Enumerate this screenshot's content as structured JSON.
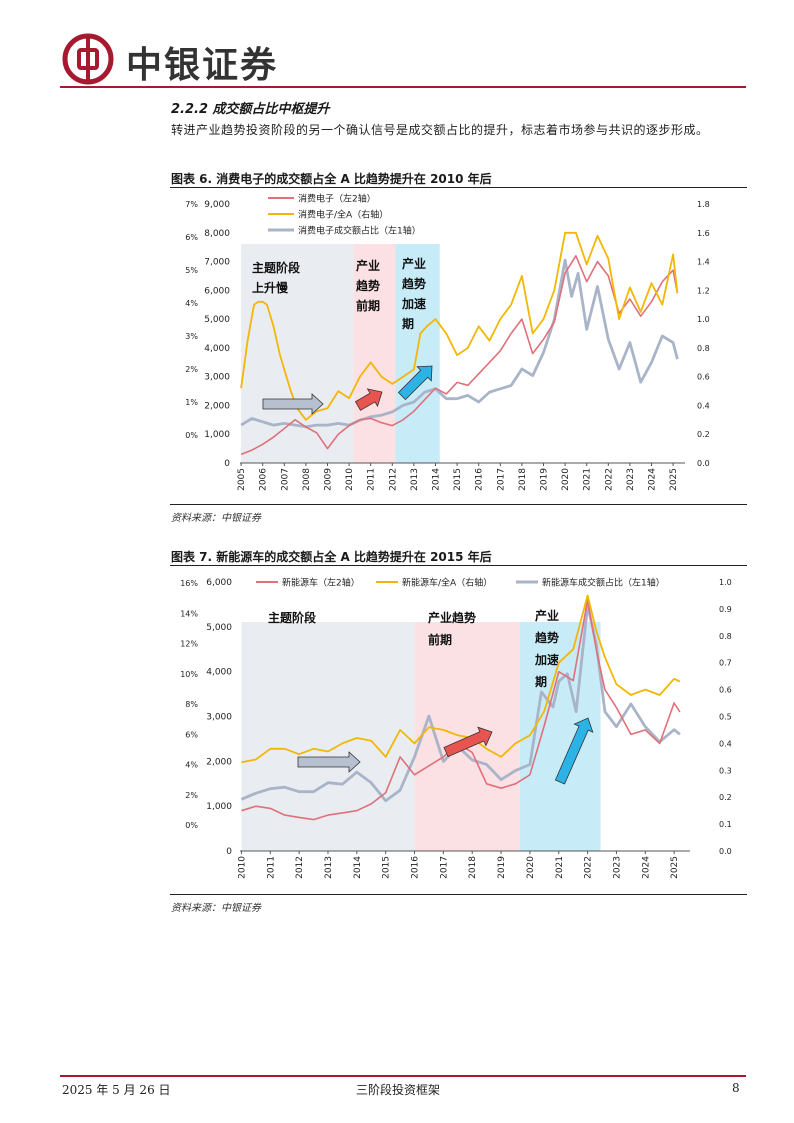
{
  "header": {
    "brand": "中银证券"
  },
  "section": {
    "title": "2.2.2 成交额占比中枢提升",
    "intro": "转进产业趋势投资阶段的另一个确认信号是成交额占比的提升，标志着市场参与共识的逐步形成。"
  },
  "figures": [
    {
      "title": "图表 6. 消费电子的成交额占全 A 比趋势提升在 2010 年后",
      "source": "资料来源：中银证券",
      "phases": [
        "主题阶段上升慢",
        "产业趋势前期",
        "产业趋势加速期"
      ]
    },
    {
      "title": "图表 7. 新能源车的成交额占全 A 比趋势提升在 2015 年后",
      "source": "资料来源：中银证券",
      "phases": [
        "主题阶段",
        "产业趋势前期",
        "产业趋势加速期"
      ]
    }
  ],
  "chart_data": [
    {
      "type": "line",
      "legend": [
        "消费电子（左2轴）",
        "消费电子/全A（右轴）",
        "消费电子成交额占比（左1轴）"
      ],
      "left1_ticks": [
        "7%",
        "6%",
        "5%",
        "4%",
        "3%",
        "2%",
        "1%",
        "0%"
      ],
      "left2_ticks": [
        "9,000",
        "8,000",
        "7,000",
        "6,000",
        "5,000",
        "4,000",
        "3,000",
        "2,000",
        "1,000",
        "0"
      ],
      "right_ticks": [
        "1.8",
        "1.6",
        "1.4",
        "1.2",
        "1.0",
        "0.8",
        "0.6",
        "0.4",
        "0.2",
        "0.0"
      ],
      "x_ticks": [
        "2005",
        "2006",
        "2007",
        "2008",
        "2009",
        "2010",
        "2011",
        "2012",
        "2013",
        "2014",
        "2015",
        "2016",
        "2017",
        "2018",
        "2019",
        "2020",
        "2021",
        "2022",
        "2023",
        "2024",
        "2025"
      ],
      "band_labels": [
        [
          "主题阶段",
          "上升慢"
        ],
        [
          "产业",
          "趋势",
          "前期"
        ],
        [
          "产业",
          "趋势",
          "加速",
          "期"
        ]
      ],
      "colors": {
        "series_a": "#e0707a",
        "series_b": "#f2b705",
        "series_c": "#a9b4c8",
        "band1": "#e9edf1",
        "band2": "#fbe1e4",
        "band3": "#c7ecf7",
        "arrow1": "#b7c0cf",
        "arrow2": "#e85550",
        "arrow3": "#2bb3e6"
      },
      "series": [
        {
          "name": "消费电子（左2轴）",
          "axis": "left2",
          "x": [
            2005.0,
            2005.5,
            2006.0,
            2006.5,
            2007.0,
            2007.5,
            2008.0,
            2008.5,
            2009.0,
            2009.5,
            2010.0,
            2010.5,
            2011.0,
            2011.5,
            2012.0,
            2012.5,
            2013.0,
            2013.5,
            2014.0,
            2014.5,
            2015.0,
            2015.5,
            2016.0,
            2016.5,
            2017.0,
            2017.5,
            2018.0,
            2018.5,
            2019.0,
            2019.5,
            2020.0,
            2020.5,
            2021.0,
            2021.5,
            2022.0,
            2022.5,
            2023.0,
            2023.5,
            2024.0,
            2024.5,
            2025.0,
            2025.2
          ],
          "values": [
            300,
            450,
            650,
            900,
            1200,
            1500,
            1250,
            1050,
            500,
            1000,
            1300,
            1500,
            1550,
            1400,
            1300,
            1500,
            1800,
            2200,
            2600,
            2400,
            2800,
            2700,
            3100,
            3500,
            3900,
            4500,
            5000,
            3800,
            4300,
            4900,
            6600,
            7200,
            6300,
            7000,
            6500,
            5200,
            5700,
            5100,
            5600,
            6300,
            6700,
            5900
          ]
        },
        {
          "name": "消费电子/全A（右轴）",
          "axis": "right",
          "x": [
            2005.0,
            2005.3,
            2005.6,
            2005.8,
            2006.0,
            2006.2,
            2006.5,
            2006.8,
            2007.0,
            2007.3,
            2007.6,
            2008.0,
            2008.5,
            2009.0,
            2009.5,
            2010.0,
            2010.5,
            2011.0,
            2011.5,
            2012.0,
            2012.5,
            2013.0,
            2013.3,
            2013.6,
            2014.0,
            2014.5,
            2015.0,
            2015.5,
            2016.0,
            2016.5,
            2017.0,
            2017.5,
            2018.0,
            2018.5,
            2019.0,
            2019.5,
            2020.0,
            2020.5,
            2021.0,
            2021.5,
            2022.0,
            2022.5,
            2023.0,
            2023.5,
            2024.0,
            2024.5,
            2025.0,
            2025.2
          ],
          "values": [
            0.52,
            0.85,
            1.1,
            1.12,
            1.12,
            1.1,
            0.95,
            0.75,
            0.65,
            0.5,
            0.38,
            0.3,
            0.36,
            0.38,
            0.5,
            0.45,
            0.6,
            0.7,
            0.6,
            0.55,
            0.6,
            0.65,
            0.9,
            0.95,
            1.0,
            0.9,
            0.75,
            0.8,
            0.95,
            0.85,
            1.0,
            1.1,
            1.3,
            0.9,
            1.0,
            1.2,
            1.6,
            1.6,
            1.38,
            1.58,
            1.42,
            1.0,
            1.22,
            1.05,
            1.25,
            1.1,
            1.45,
            1.18
          ]
        },
        {
          "name": "消费电子成交额占比（左1轴）",
          "axis": "left1",
          "x": [
            2005.0,
            2005.5,
            2006.0,
            2006.5,
            2007.0,
            2007.5,
            2008.0,
            2008.5,
            2009.0,
            2009.5,
            2010.0,
            2010.5,
            2011.0,
            2011.5,
            2012.0,
            2012.5,
            2013.0,
            2013.5,
            2014.0,
            2014.5,
            2015.0,
            2015.5,
            2016.0,
            2016.5,
            2017.0,
            2017.5,
            2018.0,
            2018.5,
            2019.0,
            2019.5,
            2020.0,
            2020.3,
            2020.6,
            2021.0,
            2021.5,
            2022.0,
            2022.5,
            2023.0,
            2023.5,
            2024.0,
            2024.5,
            2025.0,
            2025.2
          ],
          "values": [
            0.3,
            0.5,
            0.4,
            0.3,
            0.35,
            0.3,
            0.25,
            0.3,
            0.3,
            0.35,
            0.3,
            0.45,
            0.55,
            0.6,
            0.7,
            0.9,
            1.0,
            1.3,
            1.4,
            1.1,
            1.1,
            1.2,
            1.0,
            1.3,
            1.4,
            1.5,
            2.0,
            1.8,
            2.5,
            3.5,
            5.3,
            4.2,
            4.9,
            3.2,
            4.5,
            2.9,
            2.0,
            2.8,
            1.6,
            2.2,
            3.0,
            2.8,
            2.3
          ]
        }
      ]
    },
    {
      "type": "line",
      "legend": [
        "新能源车（左2轴）",
        "新能源车/全A（右轴）",
        "新能源车成交额占比（左1轴）"
      ],
      "left1_ticks": [
        "16%",
        "14%",
        "12%",
        "10%",
        "8%",
        "6%",
        "4%",
        "2%",
        "0%"
      ],
      "left2_ticks": [
        "6,000",
        "5,000",
        "4,000",
        "3,000",
        "2,000",
        "1,000",
        "0"
      ],
      "right_ticks": [
        "1.0",
        "0.9",
        "0.8",
        "0.7",
        "0.6",
        "0.5",
        "0.4",
        "0.3",
        "0.2",
        "0.1",
        "0.0"
      ],
      "x_ticks": [
        "2010",
        "2011",
        "2012",
        "2013",
        "2014",
        "2015",
        "2016",
        "2017",
        "2018",
        "2019",
        "2020",
        "2021",
        "2022",
        "2023",
        "2024",
        "2025"
      ],
      "band_labels": [
        [
          "主题阶段"
        ],
        [
          "产业趋势",
          "前期"
        ],
        [
          "产业",
          "趋势",
          "加速",
          "期"
        ]
      ],
      "colors": {
        "series_a": "#e0707a",
        "series_b": "#f2b705",
        "series_c": "#a9b4c8",
        "band1": "#e9edf1",
        "band2": "#fbe1e4",
        "band3": "#c7ecf7",
        "arrow1": "#b7c0cf",
        "arrow2": "#e85550",
        "arrow3": "#2bb3e6"
      },
      "series": [
        {
          "name": "新能源车（左2轴）",
          "axis": "left2",
          "x": [
            2010.0,
            2010.5,
            2011.0,
            2011.5,
            2012.0,
            2012.5,
            2013.0,
            2013.5,
            2014.0,
            2014.5,
            2015.0,
            2015.5,
            2016.0,
            2016.5,
            2017.0,
            2017.5,
            2018.0,
            2018.5,
            2019.0,
            2019.5,
            2020.0,
            2020.5,
            2021.0,
            2021.5,
            2022.0,
            2022.3,
            2022.6,
            2023.0,
            2023.5,
            2024.0,
            2024.5,
            2025.0,
            2025.2
          ],
          "values": [
            900,
            1000,
            950,
            800,
            750,
            700,
            800,
            850,
            900,
            1050,
            1300,
            2100,
            1700,
            1900,
            2100,
            2400,
            2200,
            1500,
            1400,
            1500,
            1700,
            2800,
            4000,
            3800,
            5600,
            4500,
            3600,
            3200,
            2600,
            2700,
            2400,
            3300,
            3100
          ]
        },
        {
          "name": "新能源车/全A（右轴）",
          "axis": "right",
          "x": [
            2010.0,
            2010.5,
            2011.0,
            2011.5,
            2012.0,
            2012.5,
            2013.0,
            2013.5,
            2014.0,
            2014.5,
            2015.0,
            2015.5,
            2016.0,
            2016.5,
            2017.0,
            2017.5,
            2018.0,
            2018.5,
            2019.0,
            2019.5,
            2020.0,
            2020.5,
            2021.0,
            2021.5,
            2022.0,
            2022.3,
            2022.6,
            2023.0,
            2023.5,
            2024.0,
            2024.5,
            2025.0,
            2025.2
          ],
          "values": [
            0.33,
            0.34,
            0.38,
            0.38,
            0.36,
            0.38,
            0.37,
            0.4,
            0.42,
            0.41,
            0.35,
            0.45,
            0.4,
            0.46,
            0.45,
            0.43,
            0.42,
            0.38,
            0.35,
            0.4,
            0.43,
            0.52,
            0.7,
            0.75,
            0.95,
            0.82,
            0.72,
            0.62,
            0.58,
            0.6,
            0.58,
            0.64,
            0.63
          ]
        },
        {
          "name": "新能源车成交额占比（左1轴）",
          "axis": "left1",
          "x": [
            2010.0,
            2010.5,
            2011.0,
            2011.5,
            2012.0,
            2012.5,
            2013.0,
            2013.5,
            2014.0,
            2014.5,
            2015.0,
            2015.5,
            2016.0,
            2016.5,
            2017.0,
            2017.5,
            2018.0,
            2018.5,
            2019.0,
            2019.5,
            2020.0,
            2020.4,
            2020.8,
            2021.0,
            2021.3,
            2021.6,
            2022.0,
            2022.3,
            2022.6,
            2023.0,
            2023.5,
            2024.0,
            2024.5,
            2025.0,
            2025.2
          ],
          "values": [
            1.7,
            2.1,
            2.4,
            2.5,
            2.2,
            2.2,
            2.8,
            2.7,
            3.5,
            2.8,
            1.6,
            2.3,
            4.5,
            7.2,
            4.2,
            5.2,
            4.3,
            4.0,
            3.0,
            3.6,
            4.0,
            8.8,
            7.8,
            9.5,
            10.0,
            7.5,
            14.5,
            12.0,
            7.5,
            6.5,
            8.0,
            6.5,
            5.5,
            6.3,
            6.0
          ]
        }
      ]
    }
  ],
  "footer": {
    "date": "2025 年 5 月 26 日",
    "doc_title": "三阶段投资框架",
    "page": "8"
  }
}
